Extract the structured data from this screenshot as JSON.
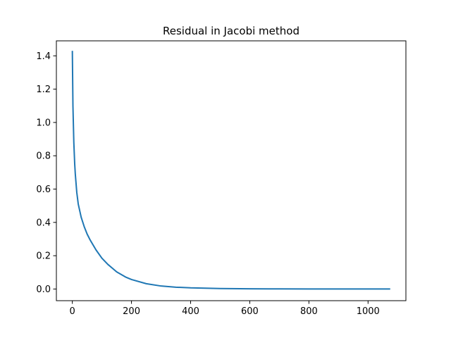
{
  "chart_data": {
    "type": "line",
    "title": "Residual in Jacobi method",
    "xlabel": "",
    "ylabel": "",
    "xlim": [
      -54,
      1128
    ],
    "ylim": [
      -0.07,
      1.49
    ],
    "grid": false,
    "legend": "none",
    "x_ticks": [
      0,
      200,
      400,
      600,
      800,
      1000
    ],
    "x_tick_labels": [
      "0",
      "200",
      "400",
      "600",
      "800",
      "1000"
    ],
    "y_ticks": [
      0.0,
      0.2,
      0.4,
      0.6,
      0.8,
      1.0,
      1.2,
      1.4
    ],
    "y_tick_labels": [
      "0.0",
      "0.2",
      "0.4",
      "0.6",
      "0.8",
      "1.0",
      "1.2",
      "1.4"
    ],
    "series": [
      {
        "name": "residual",
        "color": "#1f77b4",
        "x": [
          0,
          2,
          5,
          8,
          10,
          15,
          20,
          30,
          40,
          50,
          60,
          80,
          100,
          120,
          150,
          180,
          200,
          250,
          300,
          350,
          400,
          450,
          500,
          600,
          700,
          800,
          900,
          1000,
          1075
        ],
        "y": [
          1.43,
          1.1,
          0.88,
          0.75,
          0.69,
          0.58,
          0.51,
          0.43,
          0.375,
          0.33,
          0.295,
          0.235,
          0.185,
          0.148,
          0.103,
          0.072,
          0.057,
          0.032,
          0.018,
          0.011,
          0.007,
          0.005,
          0.003,
          0.0015,
          0.0008,
          0.0004,
          0.0002,
          0.0001,
          0.0001
        ]
      }
    ]
  }
}
